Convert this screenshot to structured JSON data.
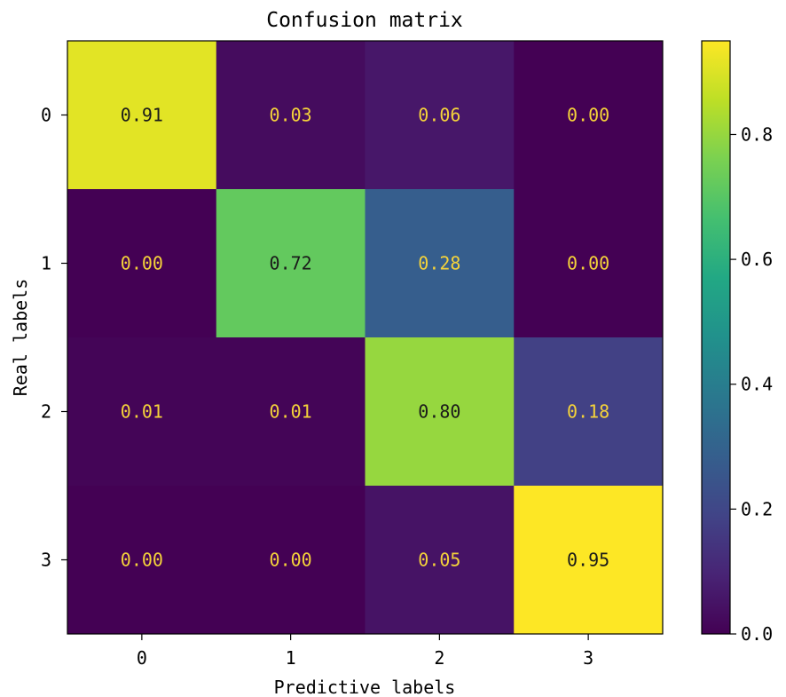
{
  "chart_data": {
    "type": "heatmap",
    "title": "Confusion matrix",
    "xlabel": "Predictive labels",
    "ylabel": "Real labels",
    "x_categories": [
      "0",
      "1",
      "2",
      "3"
    ],
    "y_categories": [
      "0",
      "1",
      "2",
      "3"
    ],
    "values": [
      [
        0.91,
        0.03,
        0.06,
        0.0
      ],
      [
        0.0,
        0.72,
        0.28,
        0.0
      ],
      [
        0.01,
        0.01,
        0.8,
        0.18
      ],
      [
        0.0,
        0.0,
        0.05,
        0.95
      ]
    ],
    "cell_labels": [
      [
        "0.91",
        "0.03",
        "0.06",
        "0.00"
      ],
      [
        "0.00",
        "0.72",
        "0.28",
        "0.00"
      ],
      [
        "0.01",
        "0.01",
        "0.80",
        "0.18"
      ],
      [
        "0.00",
        "0.00",
        "0.05",
        "0.95"
      ]
    ],
    "colormap": "viridis",
    "vmin": 0.0,
    "vmax": 0.95,
    "colorbar_ticks": [
      0.0,
      0.2,
      0.4,
      0.6,
      0.8
    ],
    "colorbar_tick_labels": [
      "0.0",
      "0.2",
      "0.4",
      "0.6",
      "0.8"
    ],
    "label_color_light": "#f5d33a",
    "label_color_dark": "#1a1a1a"
  }
}
